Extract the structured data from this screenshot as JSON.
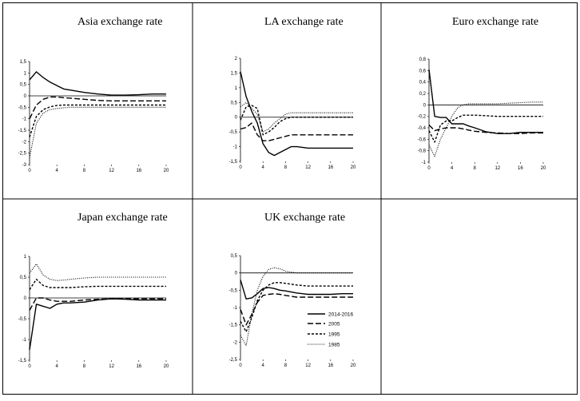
{
  "colors": {
    "line": "#000000",
    "frame": "#000000"
  },
  "legend": {
    "entries": [
      {
        "label": "2014-2016",
        "style": "solid"
      },
      {
        "label": "2005",
        "style": "longdash"
      },
      {
        "label": "1995",
        "style": "shortdash"
      },
      {
        "label": "1985",
        "style": "dotted"
      }
    ]
  },
  "chart_data": [
    {
      "type": "line",
      "title": "Asia exchange rate",
      "ylim": [
        -3,
        1.5
      ],
      "yticks": [
        "1,5",
        "1",
        "0,5",
        "0",
        "-0,5",
        "-1",
        "-1,5",
        "-2",
        "-2,5",
        "-3"
      ],
      "ytick_values": [
        1.5,
        1,
        0.5,
        0,
        -0.5,
        -1,
        -1.5,
        -2,
        -2.5,
        -3
      ],
      "xticks": [
        0,
        4,
        8,
        12,
        16,
        20
      ],
      "x": [
        0,
        1,
        2,
        3,
        4,
        5,
        6,
        8,
        10,
        12,
        14,
        16,
        18,
        20
      ],
      "series": [
        {
          "name": "2014-2016",
          "style": "solid",
          "values": [
            0.7,
            1.05,
            0.8,
            0.6,
            0.45,
            0.3,
            0.25,
            0.15,
            0.08,
            0.03,
            0.03,
            0.05,
            0.08,
            0.08
          ]
        },
        {
          "name": "2005",
          "style": "longdash",
          "values": [
            -1.0,
            -0.4,
            -0.15,
            -0.05,
            -0.05,
            -0.08,
            -0.1,
            -0.15,
            -0.2,
            -0.22,
            -0.22,
            -0.22,
            -0.22,
            -0.22
          ]
        },
        {
          "name": "1995",
          "style": "shortdash",
          "values": [
            -1.8,
            -0.9,
            -0.6,
            -0.48,
            -0.42,
            -0.4,
            -0.4,
            -0.4,
            -0.4,
            -0.4,
            -0.4,
            -0.4,
            -0.4,
            -0.4
          ]
        },
        {
          "name": "1985",
          "style": "dotted",
          "values": [
            -2.7,
            -1.2,
            -0.75,
            -0.6,
            -0.55,
            -0.52,
            -0.5,
            -0.5,
            -0.5,
            -0.5,
            -0.5,
            -0.5,
            -0.5,
            -0.5
          ]
        }
      ]
    },
    {
      "type": "line",
      "title": "LA exchange rate",
      "ylim": [
        -1.5,
        2
      ],
      "yticks": [
        "2",
        "1,5",
        "1",
        "0,5",
        "0",
        "-0,5",
        "-1",
        "-1,5"
      ],
      "ytick_values": [
        2,
        1.5,
        1,
        0.5,
        0,
        -0.5,
        -1,
        -1.5
      ],
      "xticks": [
        0,
        4,
        8,
        12,
        16,
        20
      ],
      "x": [
        0,
        1,
        2,
        3,
        4,
        5,
        6,
        7,
        8,
        9,
        10,
        12,
        14,
        16,
        18,
        20
      ],
      "series": [
        {
          "name": "2014-2016",
          "style": "solid",
          "values": [
            1.55,
            0.7,
            0.2,
            -0.2,
            -0.9,
            -1.2,
            -1.3,
            -1.2,
            -1.1,
            -1.0,
            -1.0,
            -1.05,
            -1.05,
            -1.05,
            -1.05,
            -1.05
          ]
        },
        {
          "name": "2005",
          "style": "longdash",
          "values": [
            -0.4,
            -0.35,
            -0.2,
            -0.6,
            -0.8,
            -0.8,
            -0.75,
            -0.7,
            -0.65,
            -0.6,
            -0.6,
            -0.6,
            -0.6,
            -0.6,
            -0.6,
            -0.6
          ]
        },
        {
          "name": "1995",
          "style": "shortdash",
          "values": [
            -0.1,
            0.35,
            0.4,
            0.3,
            -0.6,
            -0.5,
            -0.35,
            -0.15,
            -0.05,
            0,
            0,
            0,
            0,
            0,
            0,
            0
          ]
        },
        {
          "name": "1985",
          "style": "dotted",
          "values": [
            0.35,
            0.5,
            0.3,
            0.1,
            -0.5,
            -0.4,
            -0.2,
            -0.05,
            0.1,
            0.15,
            0.15,
            0.15,
            0.15,
            0.15,
            0.15,
            0.15
          ]
        }
      ]
    },
    {
      "type": "line",
      "title": "Euro exchange rate",
      "ylim": [
        -1,
        0.8
      ],
      "yticks": [
        "0,8",
        "0,6",
        "0,4",
        "0,2",
        "0",
        "-0,2",
        "-0,4",
        "-0,6",
        "-0,8",
        "-1"
      ],
      "ytick_values": [
        0.8,
        0.6,
        0.4,
        0.2,
        0,
        -0.2,
        -0.4,
        -0.6,
        -0.8,
        -1
      ],
      "xticks": [
        0,
        4,
        8,
        12,
        16,
        20
      ],
      "x": [
        0,
        1,
        2,
        3,
        4,
        5,
        6,
        7,
        8,
        10,
        12,
        14,
        16,
        18,
        20
      ],
      "series": [
        {
          "name": "2014-2016",
          "style": "solid",
          "values": [
            0.62,
            -0.2,
            -0.22,
            -0.22,
            -0.33,
            -0.33,
            -0.33,
            -0.37,
            -0.4,
            -0.47,
            -0.5,
            -0.5,
            -0.48,
            -0.48,
            -0.48
          ]
        },
        {
          "name": "2005",
          "style": "longdash",
          "values": [
            -0.35,
            -0.45,
            -0.42,
            -0.4,
            -0.4,
            -0.4,
            -0.42,
            -0.44,
            -0.46,
            -0.48,
            -0.49,
            -0.5,
            -0.5,
            -0.49,
            -0.49
          ]
        },
        {
          "name": "1995",
          "style": "shortdash",
          "values": [
            -0.45,
            -0.65,
            -0.35,
            -0.28,
            -0.28,
            -0.22,
            -0.18,
            -0.18,
            -0.18,
            -0.19,
            -0.2,
            -0.2,
            -0.2,
            -0.2,
            -0.2
          ]
        },
        {
          "name": "1985",
          "style": "dotted",
          "values": [
            -0.7,
            -0.9,
            -0.6,
            -0.4,
            -0.2,
            -0.05,
            0,
            0.02,
            0.02,
            0.02,
            0.02,
            0.03,
            0.04,
            0.05,
            0.05
          ]
        }
      ]
    },
    {
      "type": "line",
      "title": "Japan exchange rate",
      "ylim": [
        -1.5,
        1
      ],
      "yticks": [
        "1",
        "0,5",
        "0",
        "-0,5",
        "-1",
        "-1,5"
      ],
      "ytick_values": [
        1,
        0.5,
        0,
        -0.5,
        -1,
        -1.5
      ],
      "xticks": [
        0,
        4,
        8,
        12,
        16,
        20
      ],
      "x": [
        0,
        1,
        2,
        3,
        4,
        5,
        6,
        8,
        10,
        12,
        14,
        16,
        18,
        20
      ],
      "series": [
        {
          "name": "2014-2016",
          "style": "solid",
          "values": [
            -1.25,
            -0.15,
            -0.2,
            -0.25,
            -0.15,
            -0.12,
            -0.12,
            -0.1,
            -0.05,
            -0.02,
            -0.03,
            -0.05,
            -0.05,
            -0.05
          ]
        },
        {
          "name": "2005",
          "style": "longdash",
          "values": [
            -0.3,
            0,
            0,
            -0.05,
            -0.08,
            -0.08,
            -0.08,
            -0.05,
            -0.03,
            -0.02,
            -0.02,
            -0.02,
            -0.02,
            -0.02
          ]
        },
        {
          "name": "1995",
          "style": "shortdash",
          "values": [
            0.2,
            0.45,
            0.3,
            0.25,
            0.25,
            0.25,
            0.25,
            0.27,
            0.28,
            0.28,
            0.28,
            0.28,
            0.28,
            0.28
          ]
        },
        {
          "name": "1985",
          "style": "dotted",
          "values": [
            0.6,
            0.82,
            0.55,
            0.45,
            0.42,
            0.43,
            0.45,
            0.48,
            0.5,
            0.5,
            0.5,
            0.5,
            0.5,
            0.5
          ]
        }
      ]
    },
    {
      "type": "line",
      "title": "UK exchange rate",
      "ylim": [
        -2.5,
        0.5
      ],
      "yticks": [
        "0,5",
        "0",
        "-0,5",
        "-1",
        "-1,5",
        "-2",
        "-2,5"
      ],
      "ytick_values": [
        0.5,
        0,
        -0.5,
        -1,
        -1.5,
        -2,
        -2.5
      ],
      "xticks": [
        0,
        4,
        8,
        12,
        16,
        20
      ],
      "x": [
        0,
        1,
        2,
        3,
        4,
        5,
        6,
        7,
        8,
        10,
        12,
        14,
        16,
        18,
        20
      ],
      "legend_position": "bottom-right",
      "series": [
        {
          "name": "2014-2016",
          "style": "solid",
          "values": [
            -0.2,
            -0.75,
            -0.72,
            -0.6,
            -0.45,
            -0.42,
            -0.45,
            -0.5,
            -0.52,
            -0.58,
            -0.62,
            -0.62,
            -0.62,
            -0.6,
            -0.6
          ]
        },
        {
          "name": "2005",
          "style": "longdash",
          "values": [
            -1.05,
            -1.5,
            -1.2,
            -0.85,
            -0.65,
            -0.62,
            -0.6,
            -0.62,
            -0.65,
            -0.7,
            -0.7,
            -0.7,
            -0.7,
            -0.7,
            -0.7
          ]
        },
        {
          "name": "1995",
          "style": "shortdash",
          "values": [
            -1.4,
            -1.7,
            -1.3,
            -0.8,
            -0.5,
            -0.35,
            -0.28,
            -0.28,
            -0.3,
            -0.35,
            -0.38,
            -0.38,
            -0.38,
            -0.38,
            -0.38
          ]
        },
        {
          "name": "1985",
          "style": "dotted",
          "values": [
            -1.8,
            -2.1,
            -1.2,
            -0.5,
            -0.1,
            0.1,
            0.15,
            0.12,
            0.05,
            0,
            0,
            0,
            0,
            0,
            0
          ]
        }
      ]
    }
  ]
}
